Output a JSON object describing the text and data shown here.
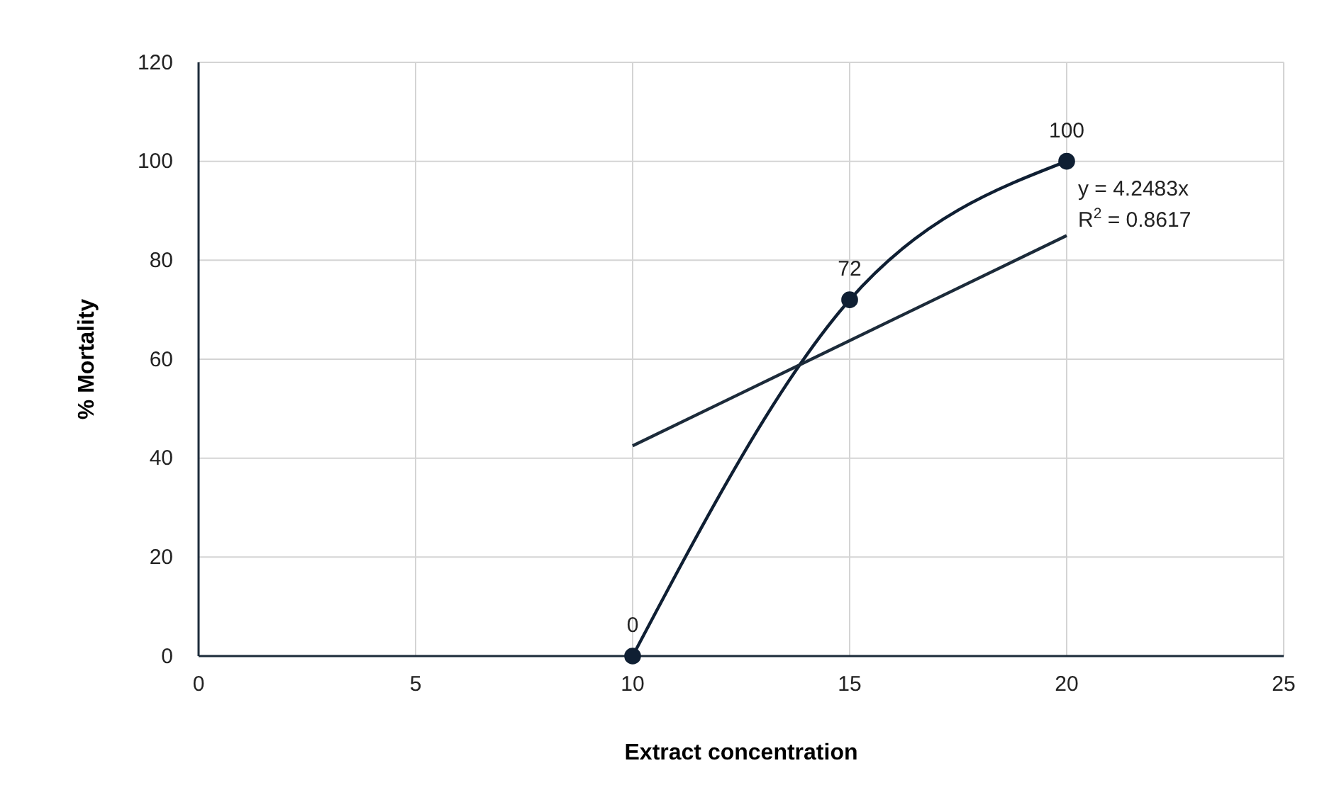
{
  "chart_data": {
    "type": "line",
    "xlabel": "Extract concentration",
    "ylabel": "% Mortality",
    "xlim": [
      0,
      25
    ],
    "xticks": [
      0,
      5,
      10,
      15,
      20,
      25
    ],
    "ylim": [
      0,
      120
    ],
    "yticks": [
      0,
      20,
      40,
      60,
      80,
      100,
      120
    ],
    "grid": true,
    "series": [
      {
        "color": "#0f1f33",
        "x": [
          10,
          15,
          20
        ],
        "values": [
          0,
          72,
          100
        ],
        "marker": "circle",
        "value_labels": [
          "0",
          "72",
          "100"
        ]
      },
      {
        "type": "line",
        "color": "#1c2b3a",
        "x": [
          10,
          20
        ],
        "values": [
          42.5,
          85
        ],
        "marker": "none"
      }
    ],
    "annotations": [
      {
        "text": "y = 4.2483x",
        "x": 20,
        "y": 85
      },
      {
        "text": "R$^{2}$ = 0.8617",
        "x": 20,
        "y": 85
      }
    ]
  }
}
